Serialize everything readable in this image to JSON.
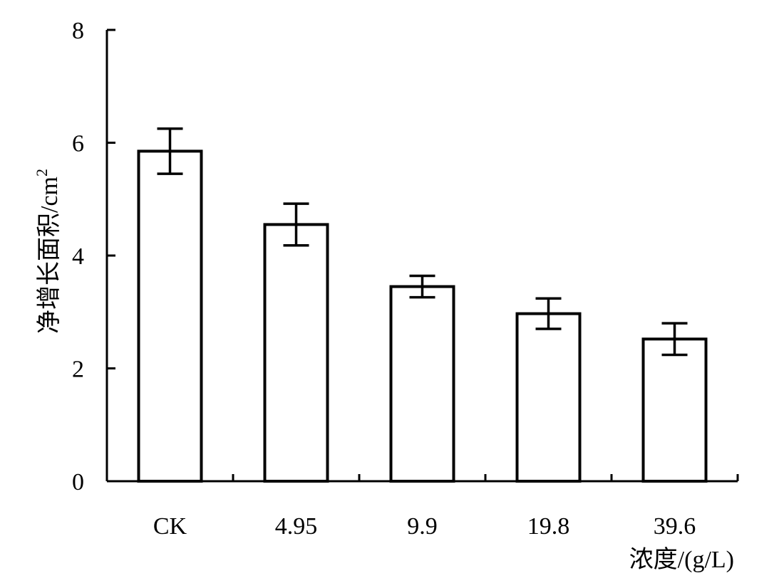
{
  "chart_data": {
    "type": "bar",
    "categories": [
      "CK",
      "4.95",
      "9.9",
      "19.8",
      "39.6"
    ],
    "values": [
      5.85,
      4.55,
      3.45,
      2.97,
      2.52
    ],
    "errors": [
      0.4,
      0.37,
      0.19,
      0.27,
      0.28
    ],
    "xlabel": "浓度/(g/L)",
    "ylabel": "净增长面积/cm",
    "ylabel_superscript": "2",
    "ylim": [
      0,
      8
    ],
    "yticks": [
      "0",
      "2",
      "4",
      "6",
      "8"
    ],
    "grid": false,
    "legend": "none",
    "bar_fill": "#ffffff",
    "bar_stroke": "#000000"
  }
}
